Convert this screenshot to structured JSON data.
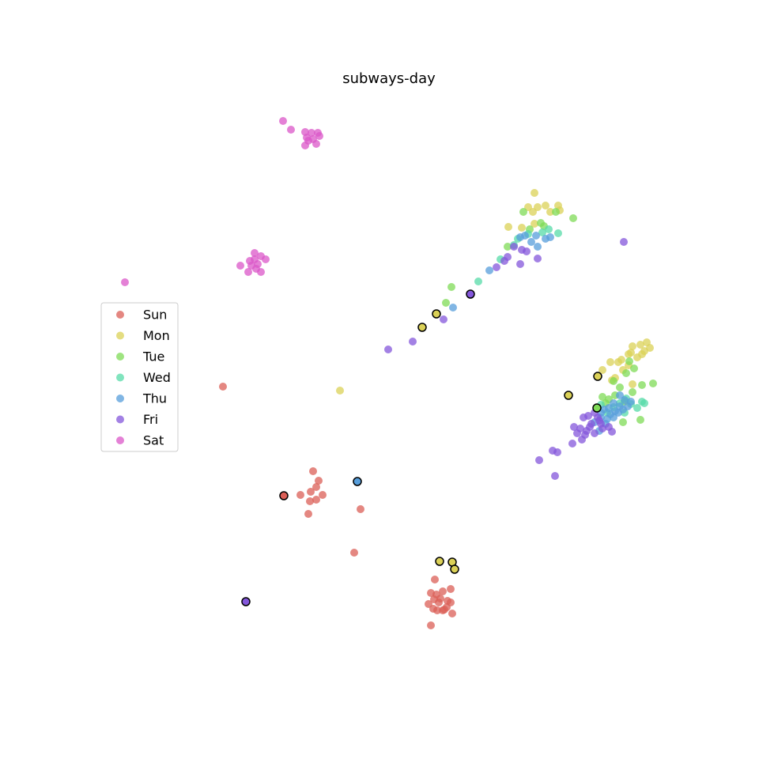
{
  "chart_data": {
    "type": "scatter",
    "title": "subways-day",
    "xlabel": "",
    "ylabel": "",
    "axes_visible": false,
    "grid": false,
    "legend_position": "center-left",
    "series": [
      {
        "name": "Sun",
        "color": "#db5f57",
        "points": [
          [
            282,
            489
          ],
          [
            396,
            596
          ],
          [
            403,
            608
          ],
          [
            400,
            616
          ],
          [
            393,
            622
          ],
          [
            408,
            626
          ],
          [
            380,
            626
          ],
          [
            392,
            634
          ],
          [
            400,
            632
          ],
          [
            390,
            650
          ],
          [
            456,
            644
          ],
          [
            448,
            699
          ],
          [
            550,
            733
          ],
          [
            545,
            750
          ],
          [
            552,
            752
          ],
          [
            560,
            748
          ],
          [
            570,
            745
          ],
          [
            566,
            760
          ],
          [
            555,
            762
          ],
          [
            548,
            770
          ],
          [
            560,
            772
          ],
          [
            572,
            776
          ],
          [
            542,
            764
          ],
          [
            553,
            772
          ],
          [
            545,
            791
          ],
          [
            565,
            768
          ],
          [
            557,
            757
          ],
          [
            570,
            762
          ],
          [
            562,
            771
          ],
          [
            549,
            758
          ]
        ],
        "highlighted": [
          [
            359,
            627
          ]
        ]
      },
      {
        "name": "Mon",
        "color": "#dbd157",
        "points": [
          [
            430,
            494
          ],
          [
            676,
            244
          ],
          [
            668,
            262
          ],
          [
            680,
            262
          ],
          [
            690,
            260
          ],
          [
            706,
            260
          ],
          [
            674,
            268
          ],
          [
            696,
            268
          ],
          [
            708,
            266
          ],
          [
            643,
            287
          ],
          [
            660,
            288
          ],
          [
            676,
            283
          ],
          [
            800,
            438
          ],
          [
            810,
            436
          ],
          [
            818,
            433
          ],
          [
            822,
            440
          ],
          [
            795,
            448
          ],
          [
            812,
            448
          ],
          [
            806,
            452
          ],
          [
            786,
            455
          ],
          [
            772,
            458
          ],
          [
            782,
            458
          ],
          [
            795,
            462
          ],
          [
            762,
            468
          ],
          [
            788,
            468
          ],
          [
            778,
            478
          ],
          [
            800,
            486
          ],
          [
            774,
            481
          ],
          [
            798,
            446
          ],
          [
            815,
            444
          ]
        ],
        "highlighted": [
          [
            534,
            414
          ],
          [
            552,
            397
          ],
          [
            756,
            476
          ],
          [
            719,
            500
          ],
          [
            556,
            710
          ],
          [
            572,
            711
          ],
          [
            575,
            720
          ]
        ]
      },
      {
        "name": "Tue",
        "color": "#7fdb57",
        "points": [
          [
            571,
            363
          ],
          [
            564,
            383
          ],
          [
            642,
            312
          ],
          [
            662,
            268
          ],
          [
            703,
            268
          ],
          [
            725,
            276
          ],
          [
            684,
            282
          ],
          [
            688,
            286
          ],
          [
            670,
            290
          ],
          [
            802,
            466
          ],
          [
            792,
            472
          ],
          [
            812,
            487
          ],
          [
            826,
            485
          ],
          [
            776,
            482
          ],
          [
            800,
            496
          ],
          [
            762,
            502
          ],
          [
            770,
            505
          ],
          [
            790,
            508
          ],
          [
            810,
            531
          ],
          [
            788,
            534
          ],
          [
            796,
            457
          ],
          [
            784,
            490
          ],
          [
            766,
            510
          ],
          [
            778,
            500
          ]
        ],
        "highlighted": [
          [
            755,
            516
          ]
        ]
      },
      {
        "name": "Wed",
        "color": "#57dba8",
        "points": [
          [
            605,
            356
          ],
          [
            633,
            328
          ],
          [
            655,
            302
          ],
          [
            668,
            296
          ],
          [
            686,
            294
          ],
          [
            706,
            295
          ],
          [
            694,
            290
          ],
          [
            650,
            310
          ],
          [
            812,
            508
          ],
          [
            815,
            510
          ],
          [
            798,
            511
          ],
          [
            790,
            522
          ],
          [
            768,
            522
          ],
          [
            776,
            515
          ],
          [
            760,
            512
          ],
          [
            806,
            516
          ],
          [
            784,
            510
          ],
          [
            792,
            504
          ]
        ],
        "highlighted": []
      },
      {
        "name": "Thu",
        "color": "#579edb",
        "points": [
          [
            573,
            389
          ],
          [
            619,
            342
          ],
          [
            680,
            312
          ],
          [
            658,
            300
          ],
          [
            664,
            298
          ],
          [
            678,
            298
          ],
          [
            690,
            302
          ],
          [
            696,
            300
          ],
          [
            672,
            306
          ],
          [
            784,
            500
          ],
          [
            790,
            506
          ],
          [
            798,
            508
          ],
          [
            784,
            514
          ],
          [
            770,
            516
          ],
          [
            776,
            510
          ],
          [
            760,
            522
          ],
          [
            768,
            530
          ],
          [
            776,
            528
          ],
          [
            782,
            522
          ],
          [
            760,
            528
          ],
          [
            752,
            534
          ],
          [
            766,
            536
          ],
          [
            758,
            545
          ],
          [
            778,
            520
          ],
          [
            794,
            514
          ],
          [
            788,
            518
          ],
          [
            772,
            524
          ],
          [
            764,
            518
          ]
        ],
        "highlighted": [
          [
            452,
            609
          ]
        ]
      },
      {
        "name": "Fri",
        "color": "#8457db",
        "points": [
          [
            789,
            306
          ],
          [
            491,
            442
          ],
          [
            522,
            432
          ],
          [
            561,
            404
          ],
          [
            628,
            338
          ],
          [
            638,
            330
          ],
          [
            650,
            312
          ],
          [
            660,
            316
          ],
          [
            666,
            318
          ],
          [
            680,
            327
          ],
          [
            658,
            334
          ],
          [
            642,
            325
          ],
          [
            752,
            522
          ],
          [
            744,
            526
          ],
          [
            738,
            528
          ],
          [
            758,
            532
          ],
          [
            748,
            536
          ],
          [
            734,
            542
          ],
          [
            726,
            540
          ],
          [
            730,
            548
          ],
          [
            742,
            545
          ],
          [
            752,
            548
          ],
          [
            762,
            542
          ],
          [
            770,
            540
          ],
          [
            774,
            546
          ],
          [
            736,
            556
          ],
          [
            724,
            561
          ],
          [
            699,
            570
          ],
          [
            705,
            572
          ],
          [
            682,
            582
          ],
          [
            702,
            602
          ],
          [
            756,
            528
          ],
          [
            746,
            540
          ],
          [
            740,
            550
          ],
          [
            760,
            536
          ]
        ],
        "highlighted": [
          [
            595,
            372
          ],
          [
            311,
            761
          ]
        ]
      },
      {
        "name": "Sat",
        "color": "#db57c8",
        "points": [
          [
            358,
            153
          ],
          [
            368,
            164
          ],
          [
            386,
            167
          ],
          [
            394,
            168
          ],
          [
            402,
            168
          ],
          [
            388,
            174
          ],
          [
            396,
            176
          ],
          [
            404,
            172
          ],
          [
            390,
            178
          ],
          [
            386,
            184
          ],
          [
            400,
            182
          ],
          [
            158,
            357
          ],
          [
            322,
            320
          ],
          [
            330,
            324
          ],
          [
            322,
            328
          ],
          [
            336,
            328
          ],
          [
            316,
            330
          ],
          [
            326,
            334
          ],
          [
            318,
            336
          ],
          [
            304,
            336
          ],
          [
            314,
            344
          ],
          [
            330,
            344
          ],
          [
            324,
            340
          ]
        ],
        "highlighted": []
      }
    ]
  }
}
